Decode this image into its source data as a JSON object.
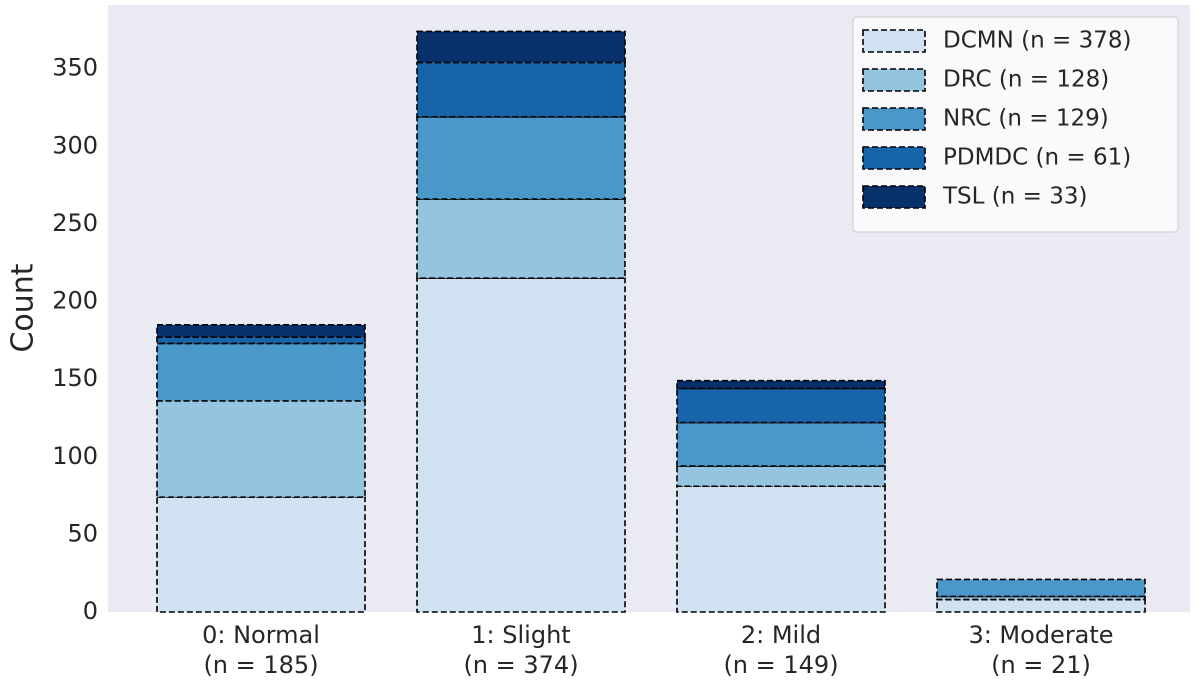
{
  "chart_data": {
    "type": "stacked-bar",
    "y_label": "Count",
    "categories": [
      "0: Normal\n(n = 185)",
      "1: Slight\n(n = 374)",
      "2: Mild\n(n = 149)",
      "3: Moderate\n(n = 21)"
    ],
    "series": [
      {
        "name": "DCMN (n = 378)",
        "color": "#d0e1f2",
        "values": [
          74,
          215,
          81,
          8
        ]
      },
      {
        "name": "DRC (n = 128)",
        "color": "#94c4df",
        "values": [
          62,
          51,
          13,
          2
        ]
      },
      {
        "name": "NRC (n = 129)",
        "color": "#4a98c9",
        "values": [
          37,
          53,
          28,
          11
        ]
      },
      {
        "name": "PDMDC (n = 61)",
        "color": "#1764ab",
        "values": [
          4,
          35,
          22,
          0
        ]
      },
      {
        "name": "TSL (n = 33)",
        "color": "#08306b",
        "values": [
          8,
          20,
          5,
          0
        ]
      }
    ],
    "ylim": [
      0,
      391
    ],
    "yticks": [
      0,
      50,
      100,
      150,
      200,
      250,
      300,
      350
    ],
    "legend": "upper right",
    "grid": false
  }
}
